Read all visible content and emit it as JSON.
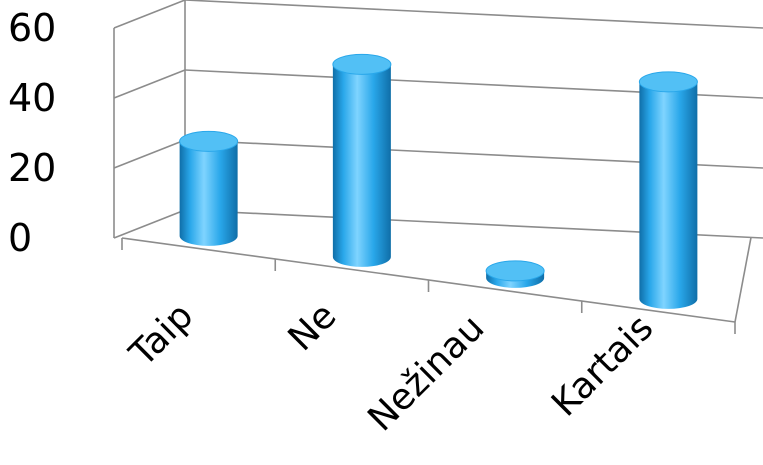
{
  "chart_data": {
    "type": "bar",
    "style": "3d-cylinder",
    "categories": [
      "Taip",
      "Ne",
      "Nežinau",
      "Kartais"
    ],
    "values": [
      27,
      55,
      2,
      62
    ],
    "ylim": [
      0,
      60
    ],
    "yticks": [
      0,
      20,
      40,
      60
    ],
    "grid": true,
    "legend": "none",
    "title": "",
    "xlabel": "",
    "ylabel": "",
    "colors": {
      "bar_light": "#7fd4ff",
      "bar_mid": "#29a7ea",
      "bar_dark": "#0f6ea8",
      "bar_top": "#52c0f5",
      "grid": "#8c8c8c"
    }
  }
}
